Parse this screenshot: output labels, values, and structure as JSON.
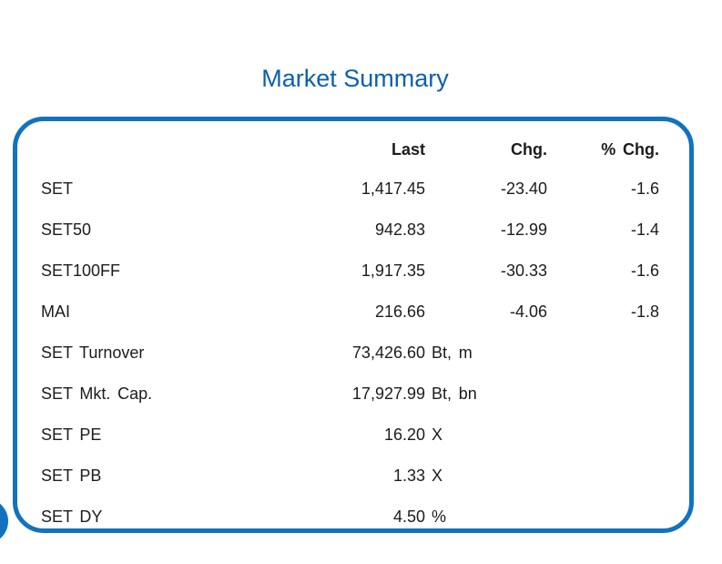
{
  "page": {
    "title": "Market Summary"
  },
  "colors": {
    "title_blue": "#0b60ad",
    "border_blue": "#1272be",
    "text": "#1c1c1c",
    "background": "#ffffff"
  },
  "table": {
    "columns": [
      "",
      "Last",
      "Chg.",
      "% Chg."
    ],
    "rows": [
      {
        "label": "SET",
        "last": "1,417.45",
        "unit": "",
        "chg": "-23.40",
        "pct_chg": "-1.6"
      },
      {
        "label": "SET50",
        "last": "942.83",
        "unit": "",
        "chg": "-12.99",
        "pct_chg": "-1.4"
      },
      {
        "label": "SET100FF",
        "last": "1,917.35",
        "unit": "",
        "chg": "-30.33",
        "pct_chg": "-1.6"
      },
      {
        "label": "MAI",
        "last": "216.66",
        "unit": "",
        "chg": "-4.06",
        "pct_chg": "-1.8"
      },
      {
        "label": "SET Turnover",
        "last": "73,426.60",
        "unit": "Bt, m",
        "chg": "",
        "pct_chg": ""
      },
      {
        "label": "SET Mkt. Cap.",
        "last": "17,927.99",
        "unit": "Bt, bn",
        "chg": "",
        "pct_chg": ""
      },
      {
        "label": "SET PE",
        "last": "16.20",
        "unit": "X",
        "chg": "",
        "pct_chg": ""
      },
      {
        "label": "SET PB",
        "last": "1.33",
        "unit": "X",
        "chg": "",
        "pct_chg": ""
      },
      {
        "label": "SET DY",
        "last": "4.50",
        "unit": "%",
        "chg": "",
        "pct_chg": ""
      }
    ]
  }
}
